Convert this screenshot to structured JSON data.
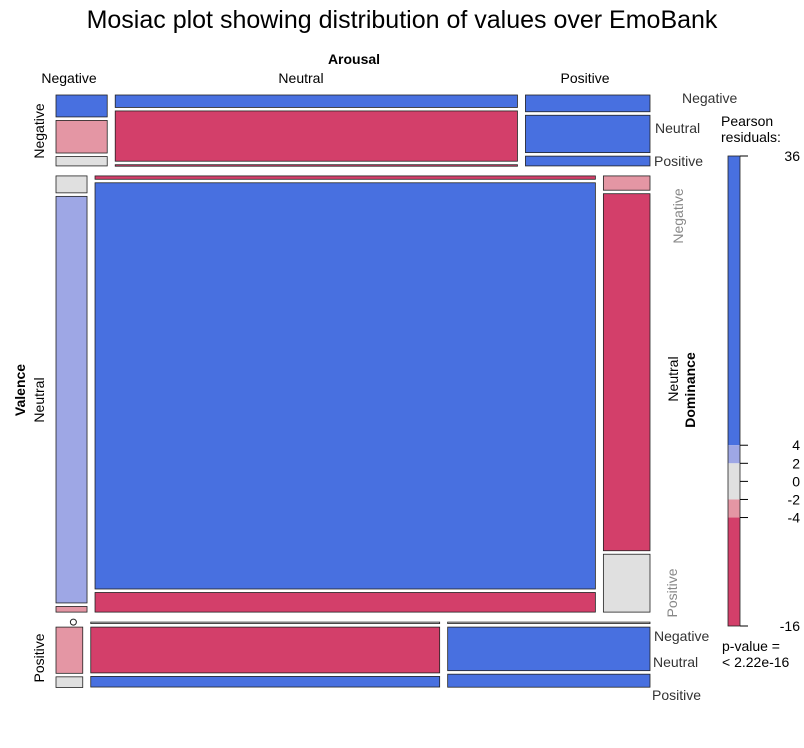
{
  "chart_data": {
    "type": "mosaic",
    "title": "Mosiac plot showing distribution of values over EmoBank",
    "variables": {
      "arousal": {
        "label": "Arousal",
        "levels": [
          "Negative",
          "Neutral",
          "Positive"
        ]
      },
      "valence": {
        "label": "Valence",
        "levels": [
          "Negative",
          "Neutral",
          "Positive"
        ]
      },
      "dominance": {
        "label": "Dominance",
        "levels": [
          "Negative",
          "Neutral",
          "Positive"
        ]
      }
    },
    "cells": [
      {
        "valence": "Negative",
        "arousal": "Negative",
        "dominance": "Negative",
        "weight": 0.0035,
        "residual": 10
      },
      {
        "valence": "Negative",
        "arousal": "Negative",
        "dominance": "Neutral",
        "weight": 0.0052,
        "residual": -3
      },
      {
        "valence": "Negative",
        "arousal": "Negative",
        "dominance": "Positive",
        "weight": 0.0015,
        "residual": 0
      },
      {
        "valence": "Negative",
        "arousal": "Neutral",
        "dominance": "Negative",
        "weight": 0.0156,
        "residual": 20
      },
      {
        "valence": "Negative",
        "arousal": "Neutral",
        "dominance": "Neutral",
        "weight": 0.063,
        "residual": -12
      },
      {
        "valence": "Negative",
        "arousal": "Neutral",
        "dominance": "Positive",
        "weight": 0.0015,
        "residual": -5
      },
      {
        "valence": "Negative",
        "arousal": "Positive",
        "dominance": "Negative",
        "weight": 0.0065,
        "residual": 12
      },
      {
        "valence": "Negative",
        "arousal": "Positive",
        "dominance": "Neutral",
        "weight": 0.0145,
        "residual": 8
      },
      {
        "valence": "Negative",
        "arousal": "Positive",
        "dominance": "Positive",
        "weight": 0.0038,
        "residual": 6
      },
      {
        "valence": "Neutral",
        "arousal": "Negative",
        "dominance": "Negative",
        "weight": 0.0015,
        "residual": 0
      },
      {
        "valence": "Neutral",
        "arousal": "Negative",
        "dominance": "Neutral",
        "weight": 0.036,
        "residual": 3
      },
      {
        "valence": "Neutral",
        "arousal": "Negative",
        "dominance": "Positive",
        "weight": 0.0005,
        "residual": -3
      },
      {
        "valence": "Neutral",
        "arousal": "Neutral",
        "dominance": "Negative",
        "weight": 0.0048,
        "residual": -6
      },
      {
        "valence": "Neutral",
        "arousal": "Neutral",
        "dominance": "Neutral",
        "weight": 0.58,
        "residual": 36
      },
      {
        "valence": "Neutral",
        "arousal": "Neutral",
        "dominance": "Positive",
        "weight": 0.028,
        "residual": -14
      },
      {
        "valence": "Neutral",
        "arousal": "Positive",
        "dominance": "Negative",
        "weight": 0.0019,
        "residual": -3
      },
      {
        "valence": "Neutral",
        "arousal": "Positive",
        "dominance": "Neutral",
        "weight": 0.0475,
        "residual": -16
      },
      {
        "valence": "Neutral",
        "arousal": "Positive",
        "dominance": "Positive",
        "weight": 0.0077,
        "residual": 1
      },
      {
        "valence": "Positive",
        "arousal": "Negative",
        "dominance": "Negative",
        "weight": 0.0,
        "residual": 0
      },
      {
        "valence": "Positive",
        "arousal": "Negative",
        "dominance": "Neutral",
        "weight": 0.0039,
        "residual": -3
      },
      {
        "valence": "Positive",
        "arousal": "Negative",
        "dominance": "Positive",
        "weight": 0.0009,
        "residual": 0
      },
      {
        "valence": "Positive",
        "arousal": "Neutral",
        "dominance": "Negative",
        "weight": 0.0005,
        "residual": 0
      },
      {
        "valence": "Positive",
        "arousal": "Neutral",
        "dominance": "Neutral",
        "weight": 0.0504,
        "residual": -12
      },
      {
        "valence": "Positive",
        "arousal": "Neutral",
        "dominance": "Positive",
        "weight": 0.0117,
        "residual": 10
      },
      {
        "valence": "Positive",
        "arousal": "Positive",
        "dominance": "Negative",
        "weight": 0.0002,
        "residual": 0
      },
      {
        "valence": "Positive",
        "arousal": "Positive",
        "dominance": "Neutral",
        "weight": 0.0278,
        "residual": 14
      },
      {
        "valence": "Positive",
        "arousal": "Positive",
        "dominance": "Positive",
        "weight": 0.0083,
        "residual": 12
      }
    ],
    "legend": {
      "title_lines": [
        "Pearson",
        "residuals:"
      ],
      "ticks": [
        36,
        4,
        2,
        0,
        -2,
        -4,
        -16
      ],
      "tick_labels": [
        "36",
        "4",
        "2",
        "0",
        "-2",
        "-4",
        "-16"
      ],
      "range": [
        -16,
        36
      ],
      "pvalue_lines": [
        "p-value =",
        "< 2.22e-16"
      ],
      "placement": "right"
    },
    "colors": {
      "strong_positive": "#4870E0",
      "moderate_positive": "#9EA7E5",
      "neutral": "#E0E0E0",
      "moderate_negative": "#E496A4",
      "strong_negative": "#D33F6A",
      "border": "#222222"
    }
  }
}
